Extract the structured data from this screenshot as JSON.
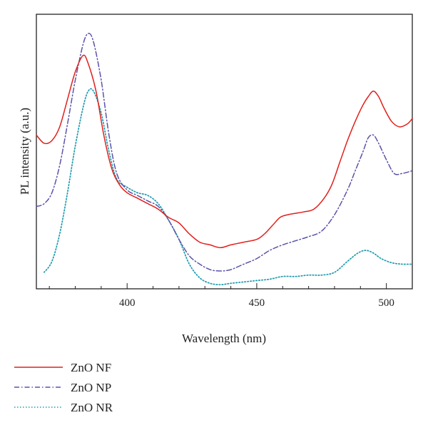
{
  "chart_data": {
    "type": "line",
    "title": "",
    "xlabel": "Wavelength (nm)",
    "ylabel": "PL intensity (a.u.)",
    "xlim": [
      365,
      510
    ],
    "ylim": [
      0,
      100
    ],
    "x_ticks": [
      400,
      450,
      500
    ],
    "x_tick_labels": [
      "400",
      "450",
      "500"
    ],
    "y_ticks_labeled": false,
    "grid": false,
    "legend_position": "below-left",
    "series": [
      {
        "name": "ZnO NF",
        "color": "#e0201c",
        "dash": "solid",
        "points": [
          [
            365,
            56
          ],
          [
            368,
            53
          ],
          [
            371,
            54
          ],
          [
            374,
            59
          ],
          [
            377,
            69
          ],
          [
            380,
            79
          ],
          [
            383,
            85
          ],
          [
            385,
            82
          ],
          [
            388,
            72
          ],
          [
            391,
            56
          ],
          [
            394,
            44
          ],
          [
            397,
            38
          ],
          [
            400,
            35
          ],
          [
            404,
            33
          ],
          [
            408,
            31
          ],
          [
            412,
            29
          ],
          [
            416,
            26
          ],
          [
            420,
            24
          ],
          [
            424,
            20
          ],
          [
            428,
            17
          ],
          [
            432,
            16
          ],
          [
            436,
            15
          ],
          [
            440,
            16
          ],
          [
            445,
            17
          ],
          [
            450,
            18
          ],
          [
            453,
            20
          ],
          [
            456,
            23
          ],
          [
            459,
            26
          ],
          [
            462,
            27
          ],
          [
            465,
            27.5
          ],
          [
            468,
            28
          ],
          [
            472,
            29
          ],
          [
            476,
            33
          ],
          [
            479,
            38
          ],
          [
            482,
            46
          ],
          [
            485,
            54
          ],
          [
            488,
            61
          ],
          [
            491,
            67
          ],
          [
            493,
            70
          ],
          [
            495,
            72
          ],
          [
            497,
            70
          ],
          [
            499,
            66
          ],
          [
            502,
            61
          ],
          [
            505,
            59
          ],
          [
            508,
            60
          ],
          [
            510,
            62
          ]
        ]
      },
      {
        "name": "ZnO NP",
        "color": "#5b53a8",
        "dash": "dash-dot",
        "points": [
          [
            365,
            30
          ],
          [
            368,
            31
          ],
          [
            371,
            35
          ],
          [
            374,
            45
          ],
          [
            377,
            60
          ],
          [
            380,
            76
          ],
          [
            383,
            89
          ],
          [
            385,
            93
          ],
          [
            387,
            90
          ],
          [
            390,
            76
          ],
          [
            393,
            56
          ],
          [
            396,
            42
          ],
          [
            400,
            36
          ],
          [
            404,
            34
          ],
          [
            408,
            32
          ],
          [
            412,
            30
          ],
          [
            416,
            25
          ],
          [
            420,
            18
          ],
          [
            424,
            12
          ],
          [
            428,
            9
          ],
          [
            432,
            7
          ],
          [
            436,
            6.5
          ],
          [
            440,
            7
          ],
          [
            445,
            9
          ],
          [
            450,
            11
          ],
          [
            455,
            14
          ],
          [
            460,
            16
          ],
          [
            465,
            17.5
          ],
          [
            470,
            19
          ],
          [
            475,
            21
          ],
          [
            480,
            27
          ],
          [
            485,
            36
          ],
          [
            488,
            43
          ],
          [
            491,
            50
          ],
          [
            493,
            55
          ],
          [
            495,
            56
          ],
          [
            497,
            53
          ],
          [
            500,
            47
          ],
          [
            503,
            42
          ],
          [
            506,
            42
          ],
          [
            510,
            43
          ]
        ]
      },
      {
        "name": "ZnO NR",
        "color": "#1f9bb0",
        "dash": "dotted",
        "points": [
          [
            368,
            6
          ],
          [
            371,
            10
          ],
          [
            374,
            20
          ],
          [
            377,
            35
          ],
          [
            380,
            52
          ],
          [
            383,
            66
          ],
          [
            385,
            72
          ],
          [
            387,
            72
          ],
          [
            390,
            64
          ],
          [
            393,
            50
          ],
          [
            396,
            40
          ],
          [
            400,
            37
          ],
          [
            404,
            35
          ],
          [
            408,
            34
          ],
          [
            412,
            31
          ],
          [
            416,
            25
          ],
          [
            420,
            18
          ],
          [
            424,
            9
          ],
          [
            428,
            4
          ],
          [
            432,
            2
          ],
          [
            436,
            1.5
          ],
          [
            440,
            2
          ],
          [
            445,
            2.5
          ],
          [
            450,
            3
          ],
          [
            455,
            3.5
          ],
          [
            460,
            4.5
          ],
          [
            465,
            4.5
          ],
          [
            470,
            5
          ],
          [
            475,
            5
          ],
          [
            480,
            6
          ],
          [
            485,
            10
          ],
          [
            489,
            13
          ],
          [
            492,
            14
          ],
          [
            495,
            13
          ],
          [
            498,
            11
          ],
          [
            502,
            9.5
          ],
          [
            506,
            9
          ],
          [
            510,
            9
          ]
        ]
      }
    ]
  }
}
